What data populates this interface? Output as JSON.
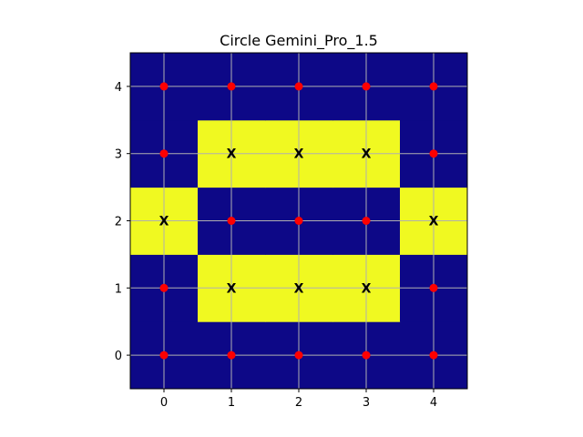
{
  "chart_data": {
    "type": "heatmap",
    "title": "Circle Gemini_Pro_1.5",
    "xlabel": "",
    "ylabel": "",
    "x": [
      0,
      1,
      2,
      3,
      4
    ],
    "y": [
      0,
      1,
      2,
      3,
      4
    ],
    "xlim": [
      -0.5,
      4.5
    ],
    "ylim": [
      -0.5,
      4.5
    ],
    "x_ticks": [
      "0",
      "1",
      "2",
      "3",
      "4"
    ],
    "y_ticks": [
      "0",
      "1",
      "2",
      "3",
      "4"
    ],
    "grid": true,
    "colors": {
      "off": "#0d0887",
      "on": "#f0f921",
      "point": "#ff0000",
      "grid": "#b0b0b0"
    },
    "cells": [
      [
        0,
        0,
        0,
        0,
        0
      ],
      [
        0,
        1,
        1,
        1,
        0
      ],
      [
        1,
        0,
        0,
        0,
        1
      ],
      [
        0,
        1,
        1,
        1,
        0
      ],
      [
        0,
        0,
        0,
        0,
        0
      ]
    ],
    "marker_symbols": {
      "filled": "X",
      "empty": "dot"
    }
  }
}
